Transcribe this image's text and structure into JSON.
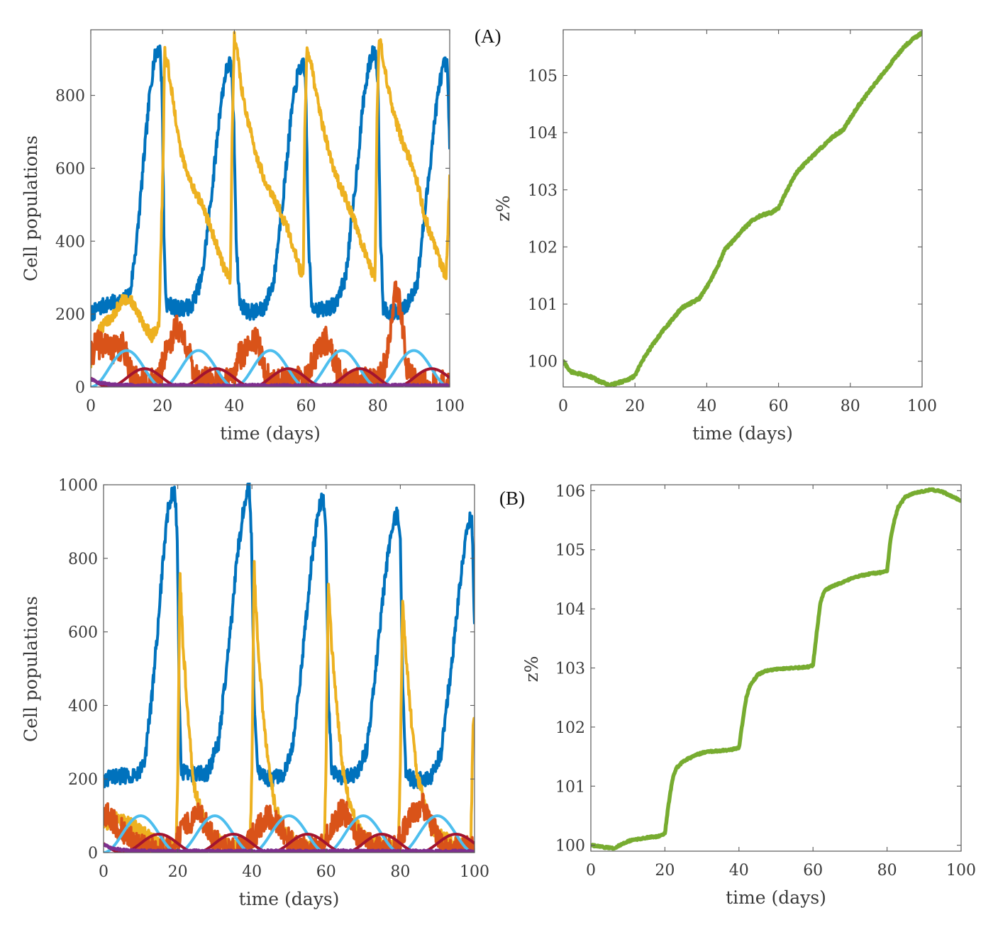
{
  "panels": [
    {
      "label": "(A)"
    },
    {
      "label": "(B)"
    }
  ],
  "chart_data": [
    {
      "id": "A-populations",
      "type": "line",
      "title": "",
      "xlabel": "time (days)",
      "ylabel": "Cell populations",
      "xlim": [
        0,
        100
      ],
      "ylim": [
        0,
        980
      ],
      "xticks": [
        0,
        20,
        40,
        60,
        80,
        100
      ],
      "yticks": [
        0,
        200,
        400,
        600,
        800
      ],
      "grid": false,
      "series": [
        {
          "color": "#0072bd",
          "noise": 22,
          "x": [
            0,
            3,
            6,
            9,
            11,
            13,
            15,
            16.5,
            17.5,
            18.5,
            19.3,
            19.9,
            20.4,
            21,
            24,
            28,
            31,
            34,
            36,
            37.5,
            38.7,
            39.3,
            39.9,
            40.6,
            41.5,
            44,
            48,
            51,
            54,
            56,
            57.5,
            58.5,
            59.3,
            59.9,
            60.6,
            61.5,
            64,
            68,
            71,
            74,
            76,
            77.5,
            78.5,
            79.3,
            80,
            80.7,
            81.5,
            84,
            88,
            91,
            94,
            96,
            97.5,
            98.5,
            99.3,
            100
          ],
          "y": [
            200,
            220,
            230,
            235,
            260,
            420,
            650,
            810,
            890,
            925,
            925,
            800,
            400,
            230,
            215,
            220,
            300,
            560,
            760,
            860,
            890,
            860,
            700,
            380,
            230,
            205,
            210,
            290,
            560,
            760,
            850,
            880,
            880,
            830,
            420,
            225,
            210,
            225,
            300,
            580,
            790,
            880,
            915,
            918,
            840,
            420,
            220,
            200,
            220,
            290,
            560,
            750,
            850,
            885,
            880,
            660
          ]
        },
        {
          "color": "#edb120",
          "noise": 16,
          "x": [
            0,
            2,
            4,
            6,
            9,
            11,
            13,
            15,
            17,
            19,
            20.1,
            20.6,
            21.5,
            23,
            25,
            27,
            29,
            31,
            34,
            37,
            38.9,
            39.4,
            40,
            40.8,
            42,
            44,
            46,
            48,
            50,
            52,
            55,
            58,
            59.2,
            59.6,
            60.2,
            61.5,
            63,
            65,
            67,
            69,
            71,
            74,
            77,
            79.2,
            79.7,
            80.3,
            81.5,
            83,
            85,
            87,
            89,
            91,
            93,
            96,
            99,
            100
          ],
          "y": [
            60,
            150,
            175,
            195,
            240,
            240,
            205,
            165,
            140,
            170,
            600,
            920,
            880,
            780,
            650,
            580,
            540,
            500,
            420,
            330,
            290,
            700,
            960,
            920,
            820,
            720,
            640,
            580,
            540,
            500,
            430,
            330,
            300,
            700,
            920,
            880,
            790,
            700,
            620,
            560,
            520,
            440,
            350,
            300,
            700,
            960,
            900,
            810,
            730,
            670,
            620,
            560,
            470,
            380,
            300,
            570
          ]
        },
        {
          "color": "#d95319",
          "noise": 40,
          "x": [
            0,
            1,
            3,
            5,
            7,
            9,
            10,
            11,
            12,
            15,
            19,
            20,
            21,
            23,
            24,
            25,
            26,
            27,
            28,
            30,
            38,
            40,
            41,
            43,
            44,
            45,
            46,
            47,
            48,
            49,
            51,
            60,
            62,
            64,
            65,
            66,
            67,
            68,
            69,
            71,
            80,
            82,
            83,
            84,
            85,
            86,
            87,
            88,
            90,
            100
          ],
          "y": [
            80,
            110,
            120,
            110,
            100,
            110,
            90,
            50,
            20,
            8,
            15,
            60,
            110,
            140,
            170,
            150,
            130,
            110,
            60,
            15,
            10,
            30,
            80,
            100,
            120,
            140,
            130,
            100,
            60,
            25,
            10,
            20,
            70,
            110,
            130,
            120,
            100,
            70,
            40,
            10,
            15,
            60,
            120,
            180,
            270,
            230,
            150,
            50,
            10,
            5
          ]
        },
        {
          "color": "#4dbeee",
          "noise": 0,
          "func": "sin",
          "amp": 50,
          "offset": 50,
          "period": 20,
          "phase": 0
        },
        {
          "color": "#a2142f",
          "noise": 0,
          "func": "sin",
          "amp": 25,
          "offset": 25,
          "period": 20,
          "phase": -5
        },
        {
          "color": "#7e2f8e",
          "noise": 3,
          "x": [
            0,
            2,
            5,
            8,
            10,
            15,
            20,
            25,
            30,
            35,
            40,
            45,
            50,
            55,
            60,
            65,
            70,
            75,
            80,
            85,
            90,
            95,
            100
          ],
          "y": [
            22,
            12,
            8,
            5,
            5,
            4,
            4,
            5,
            4,
            4,
            4,
            5,
            4,
            4,
            4,
            5,
            4,
            4,
            4,
            5,
            4,
            4,
            4
          ]
        }
      ]
    },
    {
      "id": "A-z",
      "type": "line",
      "title": "",
      "xlabel": "time (days)",
      "ylabel": "z%",
      "xlim": [
        0,
        100
      ],
      "ylim": [
        99.55,
        105.8
      ],
      "xticks": [
        0,
        20,
        40,
        60,
        80,
        100
      ],
      "yticks": [
        100,
        101,
        102,
        103,
        104,
        105
      ],
      "grid": false,
      "series": [
        {
          "color": "#77ac30",
          "noise": 0.02,
          "x": [
            0,
            2,
            5,
            8,
            10,
            13,
            15,
            18,
            20,
            22,
            25,
            28,
            30,
            33,
            35,
            38,
            40,
            43,
            45,
            48,
            50,
            53,
            55,
            58,
            60,
            62,
            65,
            68,
            70,
            73,
            75,
            78,
            80,
            82,
            85,
            88,
            90,
            93,
            95,
            97,
            100
          ],
          "y": [
            100,
            99.82,
            99.77,
            99.72,
            99.65,
            99.58,
            99.62,
            99.67,
            99.75,
            100.0,
            100.3,
            100.55,
            100.7,
            100.93,
            101.0,
            101.1,
            101.3,
            101.65,
            101.95,
            102.15,
            102.3,
            102.48,
            102.55,
            102.6,
            102.68,
            102.95,
            103.3,
            103.5,
            103.62,
            103.8,
            103.92,
            104.05,
            104.25,
            104.45,
            104.7,
            104.95,
            105.1,
            105.35,
            105.5,
            105.62,
            105.75
          ]
        }
      ]
    },
    {
      "id": "B-populations",
      "type": "line",
      "title": "",
      "xlabel": "time (days)",
      "ylabel": "Cell populations",
      "xlim": [
        0,
        100
      ],
      "ylim": [
        0,
        1000
      ],
      "xticks": [
        0,
        20,
        40,
        60,
        80,
        100
      ],
      "yticks": [
        0,
        200,
        400,
        600,
        800,
        1000
      ],
      "grid": false,
      "series": [
        {
          "color": "#0072bd",
          "noise": 22,
          "x": [
            0,
            3,
            6,
            9,
            11,
            13,
            15,
            16.5,
            17.5,
            18.5,
            19.3,
            19.9,
            20.4,
            21,
            24,
            28,
            31,
            34,
            36,
            37.5,
            38.7,
            39.3,
            39.9,
            40.6,
            41.5,
            44,
            48,
            51,
            54,
            56,
            57.5,
            58.5,
            59.3,
            59.9,
            60.6,
            61.5,
            64,
            68,
            71,
            74,
            76,
            77.5,
            78.5,
            79.3,
            80,
            80.7,
            81.5,
            84,
            88,
            91,
            94,
            96,
            97.5,
            98.5,
            99.3,
            100
          ],
          "y": [
            200,
            205,
            210,
            215,
            240,
            420,
            660,
            850,
            940,
            975,
            975,
            850,
            420,
            220,
            210,
            215,
            300,
            580,
            800,
            920,
            985,
            1000,
            850,
            400,
            225,
            200,
            205,
            290,
            570,
            790,
            900,
            950,
            960,
            900,
            420,
            220,
            200,
            210,
            280,
            560,
            760,
            860,
            910,
            920,
            850,
            420,
            210,
            195,
            200,
            270,
            530,
            730,
            840,
            900,
            910,
            600
          ]
        },
        {
          "color": "#edb120",
          "noise": 20,
          "x": [
            0,
            3,
            6,
            10,
            14,
            17,
            19.5,
            20,
            20.6,
            21.5,
            23,
            24,
            26,
            28,
            30,
            33,
            36,
            39.5,
            40,
            40.6,
            41.5,
            43,
            44.5,
            46,
            48,
            50,
            53,
            56,
            59.5,
            60,
            60.6,
            61.5,
            63,
            64.5,
            66,
            68,
            70,
            73,
            76,
            79.5,
            80,
            80.6,
            81.5,
            83,
            84.5,
            86,
            88,
            90,
            94,
            99,
            99.6,
            100
          ],
          "y": [
            80,
            90,
            80,
            60,
            30,
            15,
            10,
            200,
            750,
            550,
            350,
            200,
            120,
            60,
            35,
            20,
            15,
            10,
            250,
            780,
            580,
            380,
            230,
            140,
            70,
            40,
            25,
            15,
            10,
            250,
            740,
            560,
            380,
            220,
            150,
            80,
            45,
            25,
            15,
            10,
            250,
            680,
            530,
            360,
            220,
            150,
            80,
            50,
            25,
            15,
            360,
            340
          ]
        },
        {
          "color": "#d95319",
          "noise": 35,
          "x": [
            0,
            1,
            3,
            5,
            7,
            9,
            11,
            13,
            15,
            18,
            20,
            22,
            24,
            26,
            28,
            30,
            33,
            38,
            40,
            42,
            44,
            46,
            48,
            50,
            53,
            58,
            60,
            62,
            64,
            66,
            68,
            70,
            73,
            78,
            80,
            82,
            84,
            86,
            88,
            90,
            93,
            100
          ],
          "y": [
            90,
            100,
            80,
            60,
            40,
            20,
            10,
            8,
            8,
            10,
            40,
            70,
            90,
            100,
            70,
            30,
            10,
            8,
            40,
            70,
            100,
            90,
            70,
            30,
            10,
            8,
            40,
            80,
            110,
            100,
            60,
            30,
            10,
            8,
            40,
            80,
            110,
            130,
            90,
            40,
            10,
            8
          ]
        },
        {
          "color": "#4dbeee",
          "noise": 0,
          "func": "sin",
          "amp": 50,
          "offset": 50,
          "period": 20,
          "phase": 0
        },
        {
          "color": "#a2142f",
          "noise": 0,
          "func": "sin",
          "amp": 25,
          "offset": 25,
          "period": 20,
          "phase": -5
        },
        {
          "color": "#7e2f8e",
          "noise": 3,
          "x": [
            0,
            2,
            5,
            8,
            10,
            15,
            20,
            25,
            30,
            35,
            40,
            45,
            50,
            55,
            60,
            65,
            70,
            75,
            80,
            85,
            90,
            95,
            100
          ],
          "y": [
            22,
            12,
            8,
            5,
            5,
            4,
            4,
            5,
            4,
            4,
            4,
            5,
            4,
            4,
            4,
            5,
            4,
            4,
            4,
            5,
            4,
            4,
            4
          ]
        }
      ]
    },
    {
      "id": "B-z",
      "type": "line",
      "title": "",
      "xlabel": "time (days)",
      "ylabel": "z%",
      "xlim": [
        0,
        100
      ],
      "ylim": [
        99.9,
        106.1
      ],
      "xticks": [
        0,
        20,
        40,
        60,
        80,
        100
      ],
      "yticks": [
        100,
        101,
        102,
        103,
        104,
        105,
        106
      ],
      "grid": false,
      "series": [
        {
          "color": "#77ac30",
          "noise": 0.015,
          "x": [
            0,
            3,
            6,
            8,
            10,
            14,
            18,
            20,
            21,
            22,
            23,
            25,
            28,
            31,
            35,
            38,
            40,
            41,
            42,
            43,
            45,
            47,
            50,
            55,
            59,
            60,
            61,
            62,
            63,
            65,
            68,
            72,
            76,
            79,
            80,
            81,
            82,
            83,
            85,
            88,
            92,
            95,
            97,
            99,
            100
          ],
          "y": [
            100,
            99.97,
            99.95,
            100.0,
            100.07,
            100.12,
            100.15,
            100.2,
            100.7,
            101.1,
            101.3,
            101.42,
            101.52,
            101.58,
            101.6,
            101.62,
            101.65,
            102.1,
            102.5,
            102.7,
            102.88,
            102.95,
            102.98,
            103.0,
            103.02,
            103.05,
            103.6,
            104.1,
            104.3,
            104.38,
            104.45,
            104.55,
            104.6,
            104.62,
            104.65,
            105.2,
            105.5,
            105.72,
            105.9,
            105.97,
            106.02,
            105.98,
            105.92,
            105.86,
            105.82
          ]
        }
      ]
    }
  ]
}
